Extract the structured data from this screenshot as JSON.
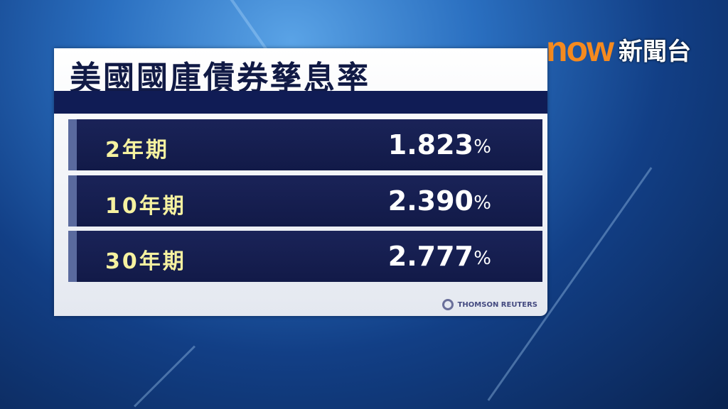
{
  "title": "美國國庫債券孳息率",
  "rows": [
    {
      "label": "2年期",
      "value": "1.823",
      "unit": "%"
    },
    {
      "label": "10年期",
      "value": "2.390",
      "unit": "%"
    },
    {
      "label": "30年期",
      "value": "2.777",
      "unit": "%"
    }
  ],
  "credit": "THOMSON REUTERS",
  "logo": {
    "brand": "now",
    "channel": "新聞台"
  },
  "colors": {
    "brand": "#f58a1f",
    "label": "#f6f2a0",
    "panel_dark": "#121a48"
  }
}
